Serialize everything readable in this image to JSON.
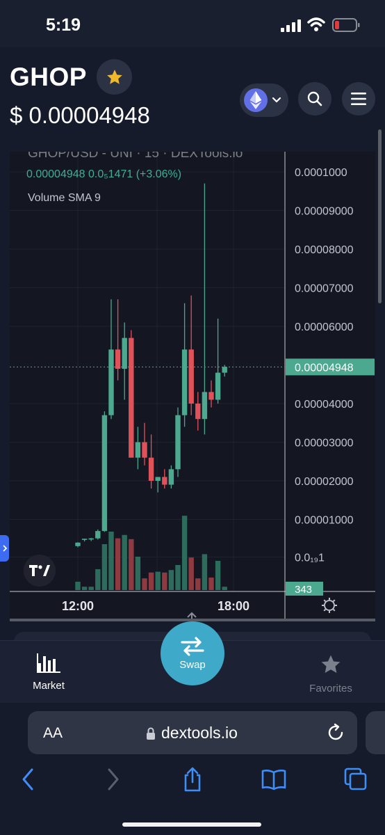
{
  "status_bar": {
    "time": "5:19"
  },
  "header": {
    "token": "GHOP",
    "price": "$ 0.00004948",
    "chain_icon": "ethereum-icon",
    "colors": {
      "star": "#f0b92b",
      "chain": "#6270e8"
    }
  },
  "chart": {
    "pair_line": "GHOP/USD - UNI · 15 · DEXTools.io",
    "ohlc_line": "0.00004948  0.0₅1471  (+3.06%)",
    "volume_label": "Volume SMA 9",
    "price_ticks": [
      "0.0001000",
      "0.00009000",
      "0.00008000",
      "0.00007000",
      "0.00006000",
      "0.00004000",
      "0.00003000",
      "0.00002000",
      "0.00001000",
      "0.0₁₉1"
    ],
    "last_price_label": "0.00004948",
    "volume_label_value": "343",
    "time_ticks": [
      "12:00",
      "18:00"
    ],
    "colors": {
      "up": "#4ca88f",
      "down": "#e0525a",
      "up_vol": "#2d6b5c",
      "down_vol": "#8f3a40",
      "price_tag": "#4ca88f"
    }
  },
  "chart_data": {
    "type": "candlestick",
    "title": "GHOP/USD - UNI · 15 · DEXTools.io",
    "ylim": [
      0,
      0.000105
    ],
    "x_ticks": [
      "12:00",
      "18:00"
    ],
    "last_price": 4.948e-05,
    "candles": [
      {
        "o": 3.1e-06,
        "h": 4.1e-06,
        "l": 2.8e-06,
        "c": 4e-06,
        "v": 0.1
      },
      {
        "o": 4.7e-06,
        "h": 5e-06,
        "l": 4.3e-06,
        "c": 5e-06,
        "v": 0.04
      },
      {
        "o": 4.8e-06,
        "h": 5.2e-06,
        "l": 4.4e-06,
        "c": 5.1e-06,
        "v": 0.04
      },
      {
        "o": 5.1e-06,
        "h": 7.4e-06,
        "l": 4.8e-06,
        "c": 7e-06,
        "v": 0.25
      },
      {
        "o": 7e-06,
        "h": 3.8e-05,
        "l": 6.8e-06,
        "c": 3.7e-05,
        "v": 0.55
      },
      {
        "o": 3.7e-05,
        "h": 6.7e-05,
        "l": 3.6e-05,
        "c": 5.4e-05,
        "v": 0.7
      },
      {
        "o": 5.4e-05,
        "h": 6.7e-05,
        "l": 4.6e-05,
        "c": 4.9e-05,
        "v": 0.62
      },
      {
        "o": 4.9e-05,
        "h": 6.1e-05,
        "l": 4.1e-05,
        "c": 5.7e-05,
        "v": 0.66
      },
      {
        "o": 5.7e-05,
        "h": 5.9e-05,
        "l": 2.6e-05,
        "c": 2.6e-05,
        "v": 0.61
      },
      {
        "o": 2.6e-05,
        "h": 3.4e-05,
        "l": 2.3e-05,
        "c": 3e-05,
        "v": 0.4
      },
      {
        "o": 3e-05,
        "h": 3.5e-05,
        "l": 2.4e-05,
        "c": 2.6e-05,
        "v": 0.14
      },
      {
        "o": 2.6e-05,
        "h": 3.2e-05,
        "l": 1.8e-05,
        "c": 2e-05,
        "v": 0.21
      },
      {
        "o": 2e-05,
        "h": 2.1e-05,
        "l": 1.7e-05,
        "c": 2.1e-05,
        "v": 0.22
      },
      {
        "o": 2.1e-05,
        "h": 2.3e-05,
        "l": 1.8e-05,
        "c": 1.9e-05,
        "v": 0.21
      },
      {
        "o": 1.9e-05,
        "h": 2.4e-05,
        "l": 1.8e-05,
        "c": 2.3e-05,
        "v": 0.24
      },
      {
        "o": 2.3e-05,
        "h": 3.9e-05,
        "l": 2.1e-05,
        "c": 3.7e-05,
        "v": 0.3
      },
      {
        "o": 3.7e-05,
        "h": 6.6e-05,
        "l": 3.4e-05,
        "c": 5.4e-05,
        "v": 0.89
      },
      {
        "o": 5.4e-05,
        "h": 6.8e-05,
        "l": 3.7e-05,
        "c": 4e-05,
        "v": 0.39
      },
      {
        "o": 4e-05,
        "h": 4.3e-05,
        "l": 3.3e-05,
        "c": 3.6e-05,
        "v": 0.14
      },
      {
        "o": 3.6e-05,
        "h": 9.7e-05,
        "l": 3.2e-05,
        "c": 4.3e-05,
        "v": 0.43
      },
      {
        "o": 4.3e-05,
        "h": 4.6e-05,
        "l": 3.9e-05,
        "c": 4.1e-05,
        "v": 0.15
      },
      {
        "o": 4.1e-05,
        "h": 6.2e-05,
        "l": 4e-05,
        "c": 4.8e-05,
        "v": 0.35
      },
      {
        "o": 4.8e-05,
        "h": 5e-05,
        "l": 4.7e-05,
        "c": 4.95e-05,
        "v": 0.04
      }
    ]
  },
  "tab_bar": {
    "market_label": "Market",
    "swap_label": "Swap",
    "favorites_label": "Favorites"
  },
  "safari": {
    "text_size_label": "AA",
    "domain": "dextools.io"
  }
}
